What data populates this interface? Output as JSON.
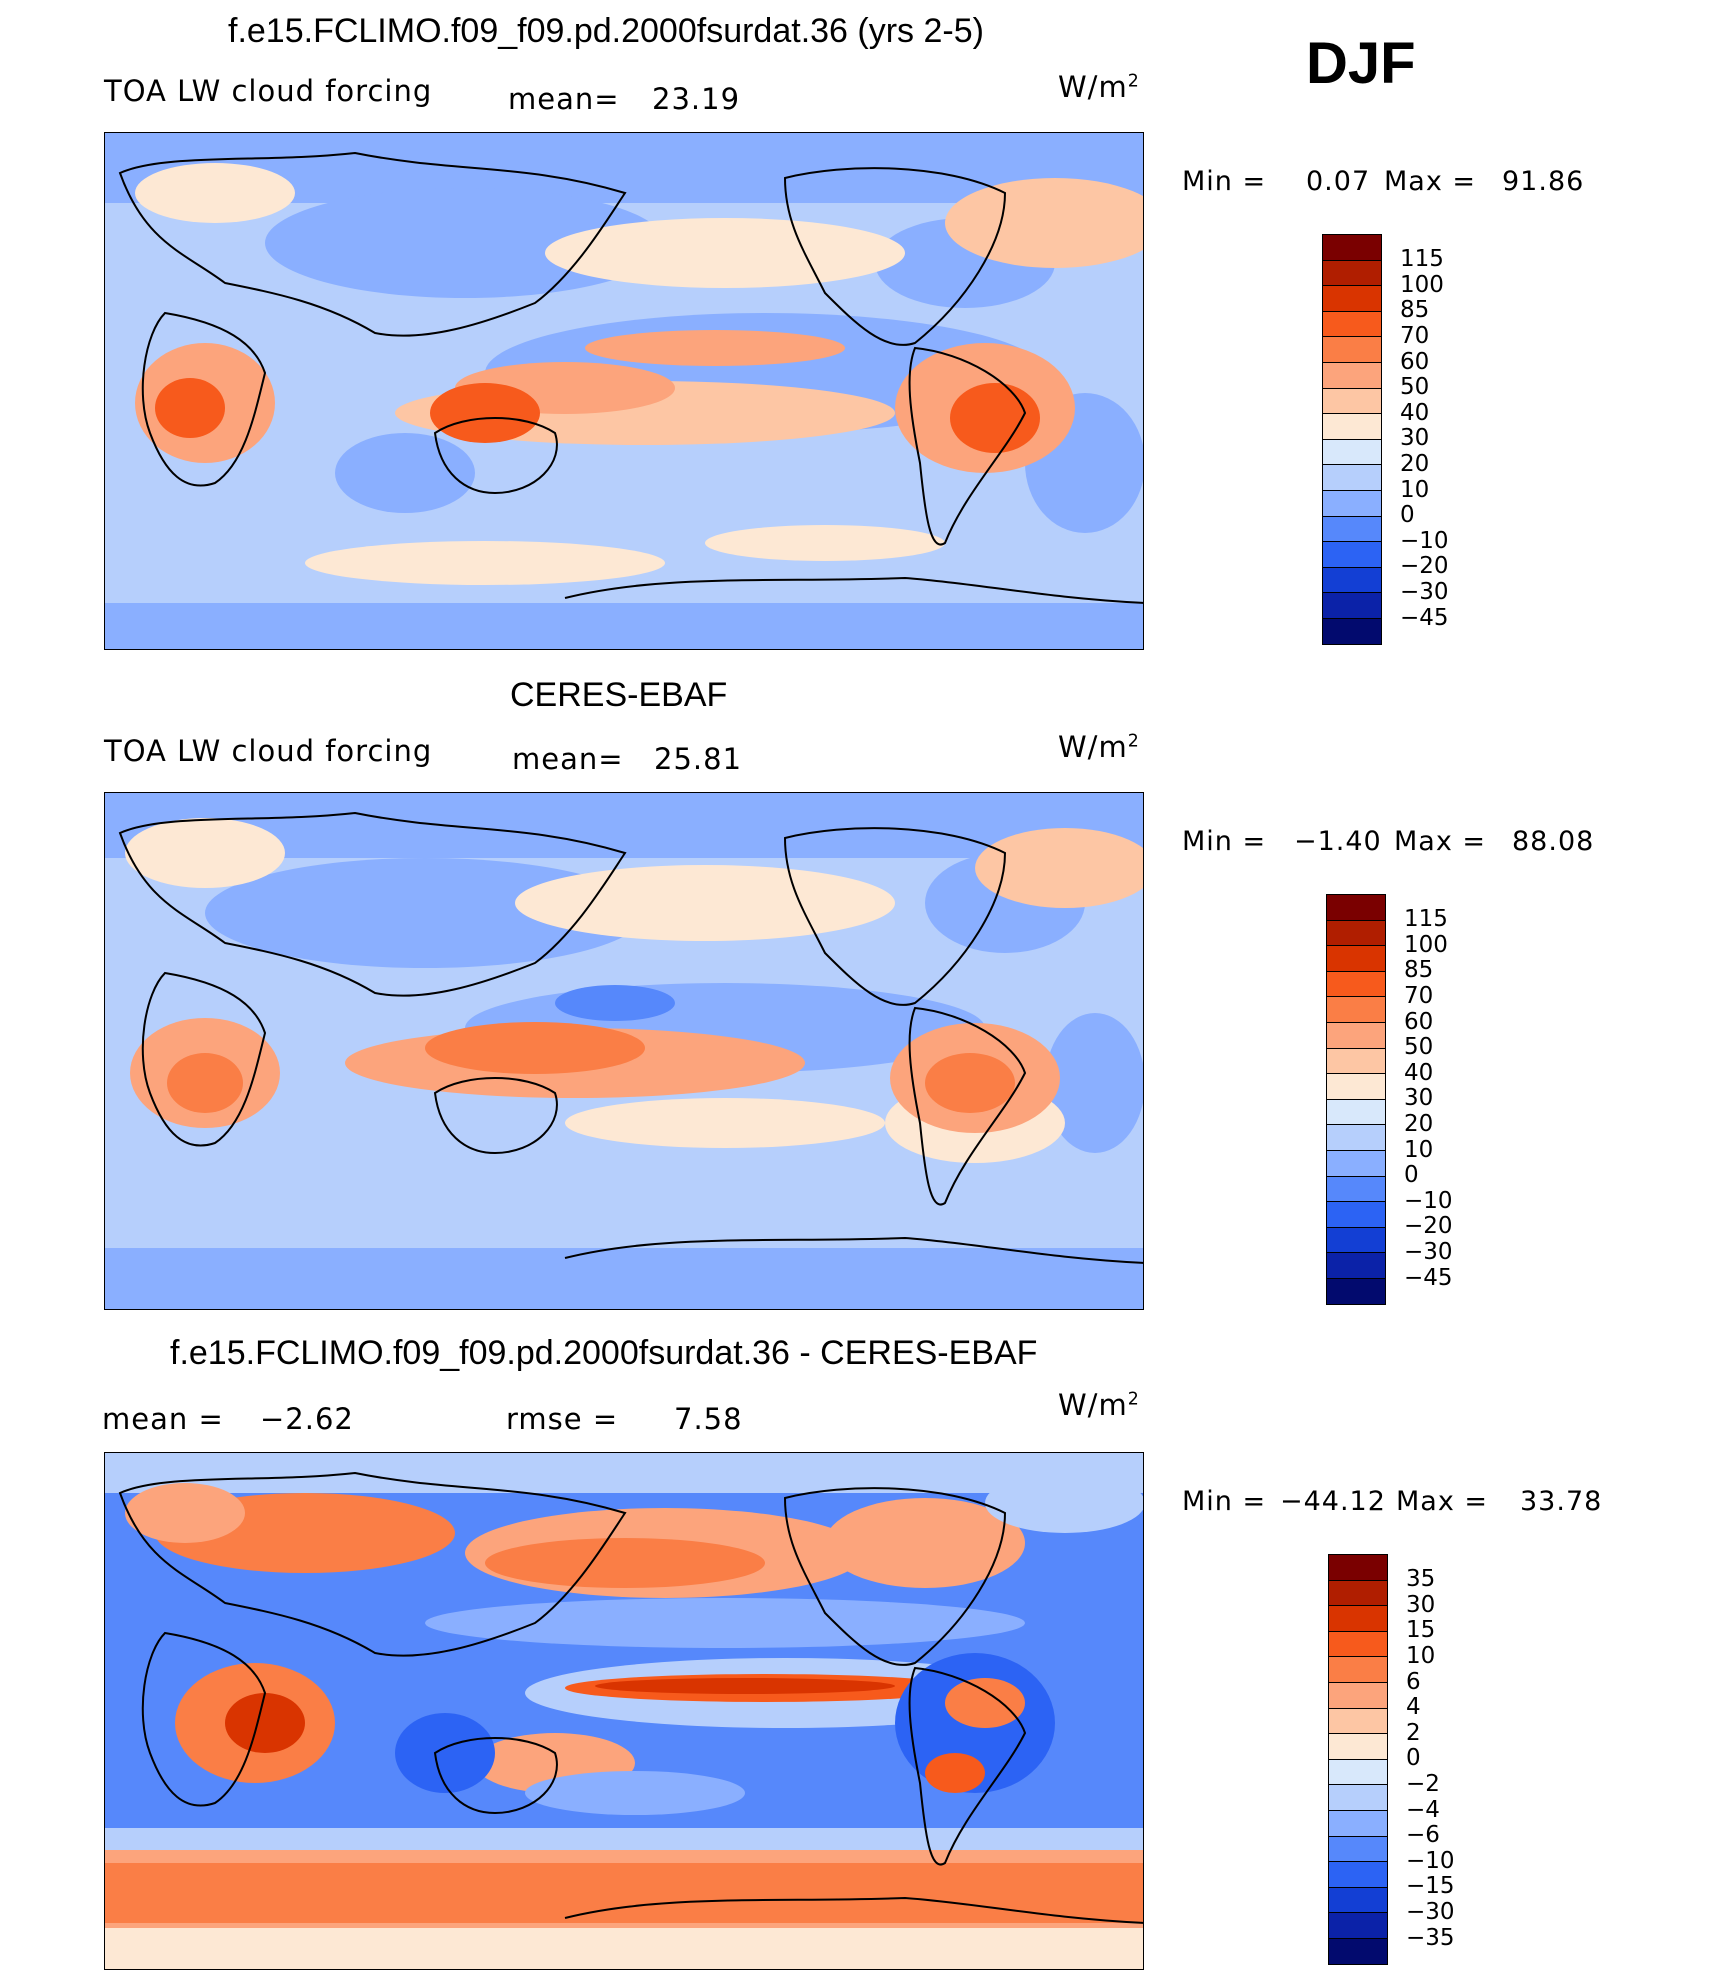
{
  "header": {
    "season": "DJF"
  },
  "panels": [
    {
      "id": "model",
      "title": "f.e15.FCLIMO.f09_f09.pd.2000fsurdat.36 (yrs 2-5)",
      "left_label": "TOA LW cloud forcing",
      "stat_label": "mean=",
      "stat_value": "23.19",
      "stat2_label": "",
      "stat2_value": "",
      "units_text": "W/m",
      "units_sup": "2",
      "min_label": "Min  =",
      "min_value": "0.07",
      "max_label": "Max  =",
      "max_value": "91.86",
      "colorbar": {
        "levels": [
          "115",
          "100",
          "85",
          "70",
          "60",
          "50",
          "40",
          "30",
          "20",
          "10",
          "0",
          "−10",
          "−20",
          "−30",
          "−45"
        ],
        "colors": [
          "#7a0000",
          "#b01e00",
          "#d93400",
          "#f75a1c",
          "#fa7e46",
          "#fca47c",
          "#fdc6a4",
          "#fde8d4",
          "#d8e8fb",
          "#b6cffc",
          "#8aafff",
          "#5688fb",
          "#2c63f4",
          "#133fd4",
          "#0b22a8",
          "#020a6e"
        ]
      }
    },
    {
      "id": "obs",
      "title": "CERES-EBAF",
      "left_label": "TOA LW cloud forcing",
      "stat_label": "mean=",
      "stat_value": "25.81",
      "stat2_label": "",
      "stat2_value": "",
      "units_text": "W/m",
      "units_sup": "2",
      "min_label": "Min  =",
      "min_value": "−1.40",
      "max_label": "Max  =",
      "max_value": "88.08",
      "colorbar": {
        "levels": [
          "115",
          "100",
          "85",
          "70",
          "60",
          "50",
          "40",
          "30",
          "20",
          "10",
          "0",
          "−10",
          "−20",
          "−30",
          "−45"
        ],
        "colors": [
          "#7a0000",
          "#b01e00",
          "#d93400",
          "#f75a1c",
          "#fa7e46",
          "#fca47c",
          "#fdc6a4",
          "#fde8d4",
          "#d8e8fb",
          "#b6cffc",
          "#8aafff",
          "#5688fb",
          "#2c63f4",
          "#133fd4",
          "#0b22a8",
          "#020a6e"
        ]
      }
    },
    {
      "id": "diff",
      "title": "f.e15.FCLIMO.f09_f09.pd.2000fsurdat.36 - CERES-EBAF",
      "left_label": "mean  =",
      "stat_label": "−2.62",
      "stat_value": "",
      "stat2_label": "rmse  =",
      "stat2_value": "7.58",
      "units_text": "W/m",
      "units_sup": "2",
      "min_label": "Min  =",
      "min_value": "−44.12",
      "max_label": "Max  =",
      "max_value": "33.78",
      "colorbar": {
        "levels": [
          "35",
          "30",
          "15",
          "10",
          "6",
          "4",
          "2",
          "0",
          "−2",
          "−4",
          "−6",
          "−10",
          "−15",
          "−30",
          "−35"
        ],
        "colors": [
          "#7a0000",
          "#b01e00",
          "#d93400",
          "#f75a1c",
          "#fa7e46",
          "#fca47c",
          "#fdc6a4",
          "#fde8d4",
          "#d8e8fb",
          "#b6cffc",
          "#8aafff",
          "#5688fb",
          "#2c63f4",
          "#133fd4",
          "#0b22a8",
          "#020a6e"
        ]
      }
    }
  ]
}
